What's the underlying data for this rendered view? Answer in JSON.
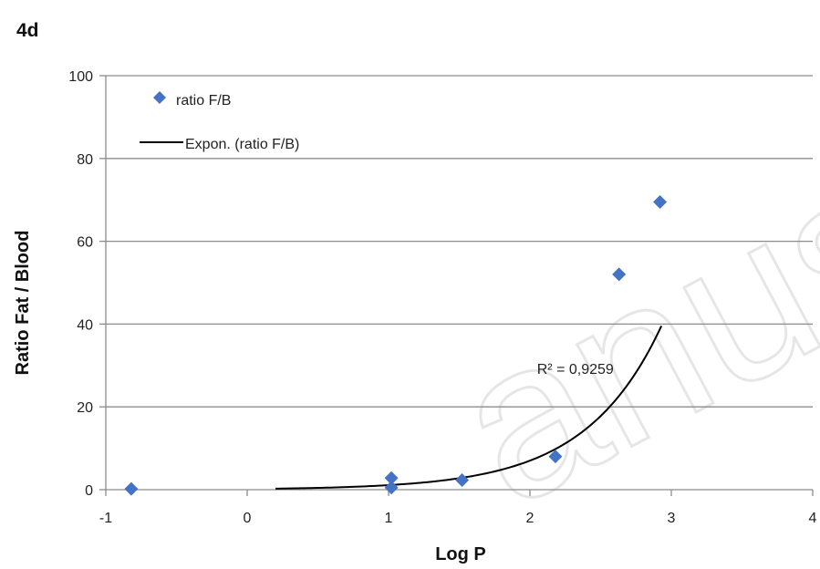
{
  "panel_label": "4d",
  "chart_data": {
    "type": "scatter",
    "xlabel": "Log P",
    "ylabel": "Ratio Fat / Blood",
    "xlim": [
      -1,
      4
    ],
    "ylim": [
      0,
      100
    ],
    "xticks": [
      -1,
      0,
      1,
      2,
      3,
      4
    ],
    "yticks": [
      0,
      20,
      40,
      60,
      80,
      100
    ],
    "grid": "horizontal",
    "legend_position": "top-left",
    "series": [
      {
        "name": "ratio F/B",
        "marker": "diamond",
        "color": "#4472C4",
        "x": [
          -0.82,
          1.02,
          1.02,
          1.52,
          2.18,
          2.63,
          2.92
        ],
        "y": [
          0.2,
          0.5,
          2.8,
          2.3,
          8.0,
          52.0,
          69.5
        ]
      },
      {
        "name": "Expon. (ratio F/B)",
        "kind": "trendline",
        "color": "#000000",
        "fit": {
          "a": 0.17,
          "b": 1.86
        },
        "x_range": [
          0.2,
          2.93
        ]
      }
    ],
    "annotations": [
      {
        "text": "R² = 0,9259",
        "x": 2.05,
        "y": 28
      }
    ]
  }
}
